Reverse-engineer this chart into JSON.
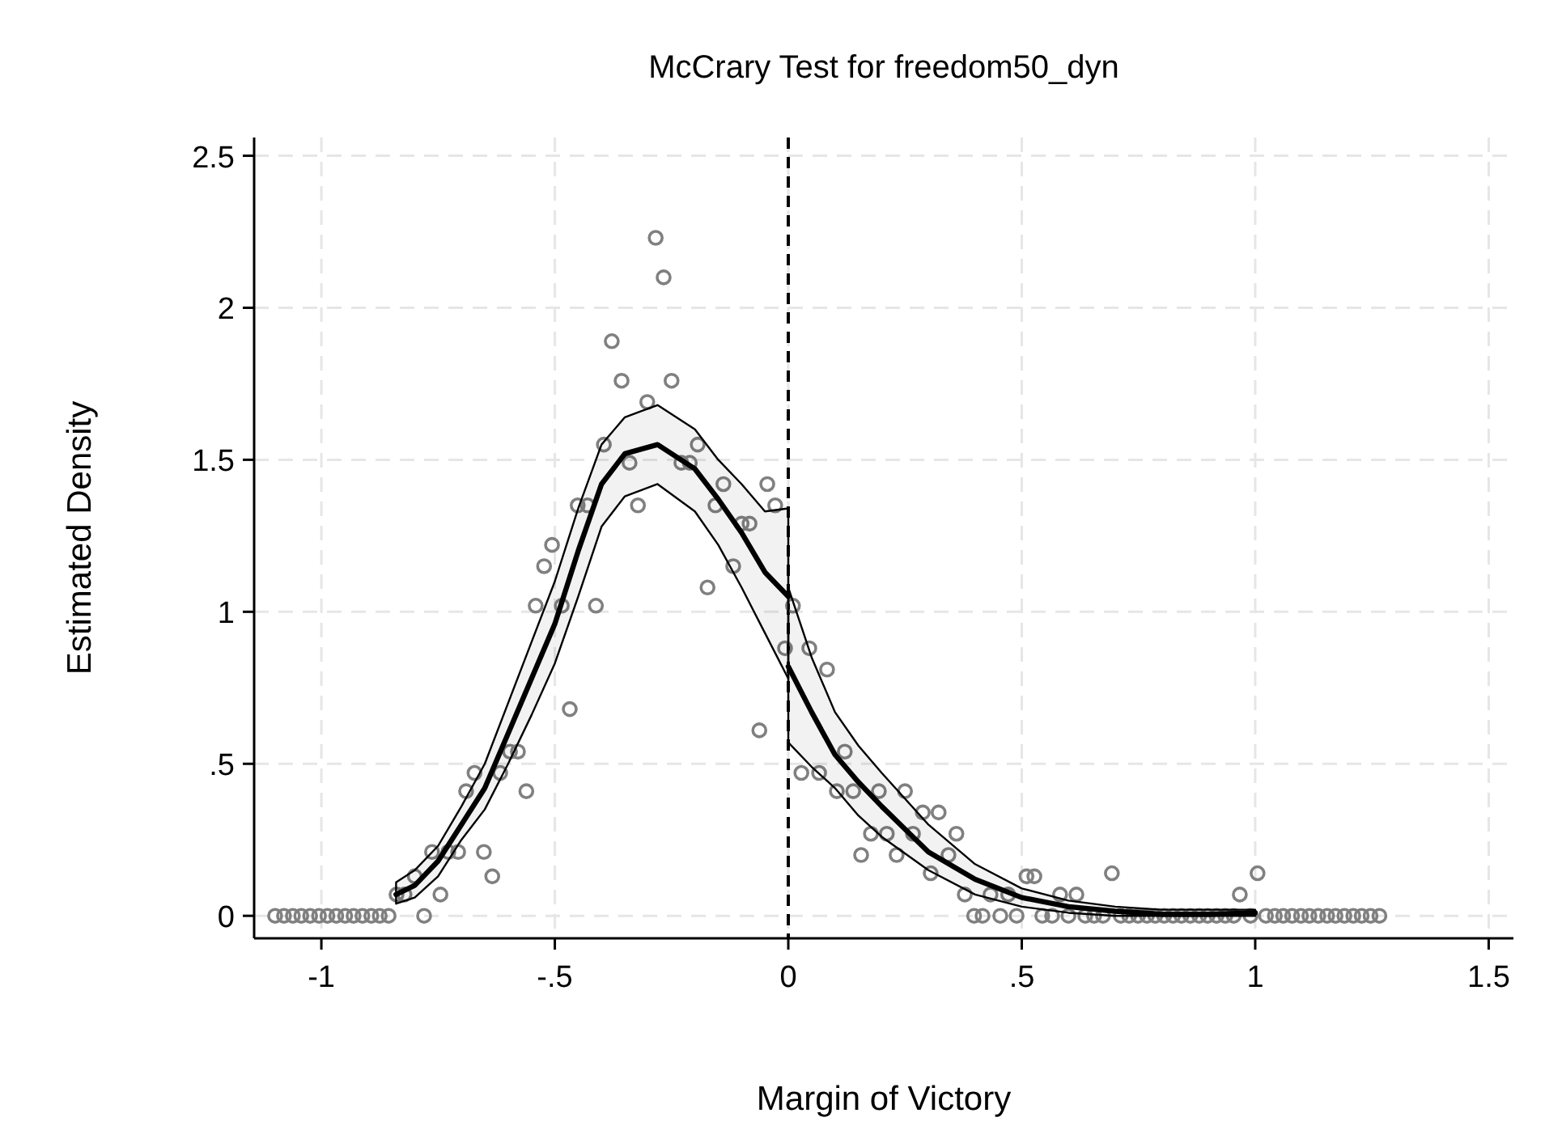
{
  "chart_data": {
    "type": "scatter",
    "title": "McCrary Test for freedom50_dyn",
    "xlabel": "Margin of Victory",
    "ylabel": "Estimated Density",
    "xlim": [
      -1.144,
      1.553
    ],
    "ylim": [
      -0.074,
      2.56
    ],
    "xticks": [
      {
        "value": -1,
        "label": "-1"
      },
      {
        "value": -0.5,
        "label": "-.5"
      },
      {
        "value": 0,
        "label": "0"
      },
      {
        "value": 0.5,
        "label": ".5"
      },
      {
        "value": 1,
        "label": "1"
      },
      {
        "value": 1.5,
        "label": "1.5"
      }
    ],
    "yticks": [
      {
        "value": 0,
        "label": "0"
      },
      {
        "value": 0.5,
        "label": ".5"
      },
      {
        "value": 1,
        "label": "1"
      },
      {
        "value": 1.5,
        "label": "1.5"
      },
      {
        "value": 2,
        "label": "2"
      },
      {
        "value": 2.5,
        "label": "2.5"
      }
    ],
    "grid": true,
    "ref_lines": [
      {
        "axis": "x",
        "value": 0,
        "color": "#000000",
        "line_style": "dashed"
      }
    ],
    "series": [
      {
        "marker": "circle",
        "color": "#808080",
        "x": [
          -1.099,
          -1.08,
          -1.061,
          -1.043,
          -1.024,
          -1.005,
          -0.987,
          -0.968,
          -0.949,
          -0.931,
          -0.912,
          -0.893,
          -0.875,
          -0.856,
          -0.839,
          -0.822,
          -0.8,
          -0.78,
          -0.763,
          -0.745,
          -0.728,
          -0.707,
          -0.69,
          -0.672,
          -0.652,
          -0.634,
          -0.617,
          -0.596,
          -0.579,
          -0.561,
          -0.541,
          -0.523,
          -0.506,
          -0.485,
          -0.468,
          -0.451,
          -0.43,
          -0.412,
          -0.395,
          -0.378,
          -0.357,
          -0.34,
          -0.322,
          -0.302,
          -0.284,
          -0.267,
          -0.25,
          -0.229,
          -0.211,
          -0.194,
          -0.173,
          -0.156,
          -0.139,
          -0.118,
          -0.1,
          -0.083,
          -0.062,
          -0.045,
          -0.028,
          -0.007,
          0.01,
          0.028,
          0.045,
          0.066,
          0.083,
          0.104,
          0.121,
          0.139,
          0.156,
          0.177,
          0.194,
          0.211,
          0.232,
          0.25,
          0.267,
          0.288,
          0.305,
          0.322,
          0.343,
          0.36,
          0.378,
          0.398,
          0.416,
          0.433,
          0.454,
          0.471,
          0.489,
          0.51,
          0.527,
          0.544,
          0.565,
          0.582,
          0.6,
          0.617,
          0.636,
          0.655,
          0.674,
          0.693,
          0.712,
          0.73,
          0.749,
          0.768,
          0.786,
          0.805,
          0.824,
          0.842,
          0.861,
          0.88,
          0.898,
          0.917,
          0.936,
          0.954,
          0.967,
          0.99,
          1.005,
          1.023,
          1.042,
          1.06,
          1.079,
          1.098,
          1.116,
          1.135,
          1.154,
          1.172,
          1.191,
          1.21,
          1.228,
          1.247,
          1.266
        ],
        "values": [
          0,
          0,
          0,
          0,
          0,
          0,
          0,
          0,
          0,
          0,
          0,
          0,
          0,
          0,
          0.07,
          0.07,
          0.13,
          0,
          0.21,
          0.07,
          0.21,
          0.21,
          0.41,
          0.47,
          0.21,
          0.13,
          0.47,
          0.54,
          0.54,
          0.41,
          1.02,
          1.15,
          1.22,
          1.02,
          0.68,
          1.35,
          1.35,
          1.02,
          1.55,
          1.89,
          1.76,
          1.49,
          1.35,
          1.69,
          2.23,
          2.1,
          1.76,
          1.49,
          1.49,
          1.55,
          1.08,
          1.35,
          1.42,
          1.15,
          1.29,
          1.29,
          0.61,
          1.42,
          1.35,
          0.88,
          1.02,
          0.47,
          0.88,
          0.47,
          0.81,
          0.41,
          0.54,
          0.41,
          0.2,
          0.27,
          0.41,
          0.27,
          0.2,
          0.41,
          0.27,
          0.34,
          0.14,
          0.34,
          0.2,
          0.27,
          0.07,
          0,
          0,
          0.07,
          0,
          0.07,
          0,
          0.13,
          0.13,
          0,
          0,
          0.07,
          0,
          0.07,
          0,
          0,
          0,
          0.14,
          0,
          0,
          0,
          0,
          0,
          0,
          0,
          0,
          0,
          0,
          0,
          0,
          0,
          0,
          0.07,
          0,
          0.14,
          0,
          0,
          0,
          0,
          0,
          0,
          0,
          0,
          0,
          0,
          0,
          0,
          0,
          0
        ]
      },
      {
        "type": "line",
        "marker": "none",
        "color": "#000000",
        "x": [
          -0.84,
          -0.8,
          -0.75,
          -0.7,
          -0.65,
          -0.6,
          -0.55,
          -0.5,
          -0.45,
          -0.4,
          -0.35,
          -0.28,
          -0.2,
          -0.15,
          -0.1,
          -0.05,
          0
        ],
        "values": [
          0.07,
          0.1,
          0.18,
          0.3,
          0.42,
          0.6,
          0.78,
          0.96,
          1.2,
          1.42,
          1.52,
          1.55,
          1.47,
          1.37,
          1.26,
          1.13,
          1.05
        ],
        "upper": [
          0.11,
          0.15,
          0.23,
          0.36,
          0.5,
          0.7,
          0.9,
          1.1,
          1.34,
          1.55,
          1.64,
          1.68,
          1.6,
          1.5,
          1.42,
          1.33,
          1.34
        ],
        "lower": [
          0.04,
          0.06,
          0.13,
          0.25,
          0.35,
          0.5,
          0.66,
          0.83,
          1.05,
          1.28,
          1.38,
          1.42,
          1.33,
          1.22,
          1.08,
          0.93,
          0.78
        ]
      },
      {
        "type": "line",
        "marker": "none",
        "color": "#000000",
        "x": [
          0,
          0.05,
          0.1,
          0.15,
          0.2,
          0.3,
          0.4,
          0.5,
          0.6,
          0.7,
          0.8,
          0.9,
          1
        ],
        "values": [
          0.82,
          0.67,
          0.53,
          0.44,
          0.36,
          0.21,
          0.12,
          0.06,
          0.03,
          0.015,
          0.005,
          0.005,
          0.01
        ],
        "upper": [
          1.08,
          0.85,
          0.67,
          0.56,
          0.47,
          0.3,
          0.17,
          0.09,
          0.05,
          0.03,
          0.02,
          0.02,
          0.02
        ],
        "lower": [
          0.57,
          0.49,
          0.42,
          0.33,
          0.26,
          0.15,
          0.07,
          0.03,
          0.01,
          0,
          0,
          0,
          0
        ]
      }
    ]
  }
}
